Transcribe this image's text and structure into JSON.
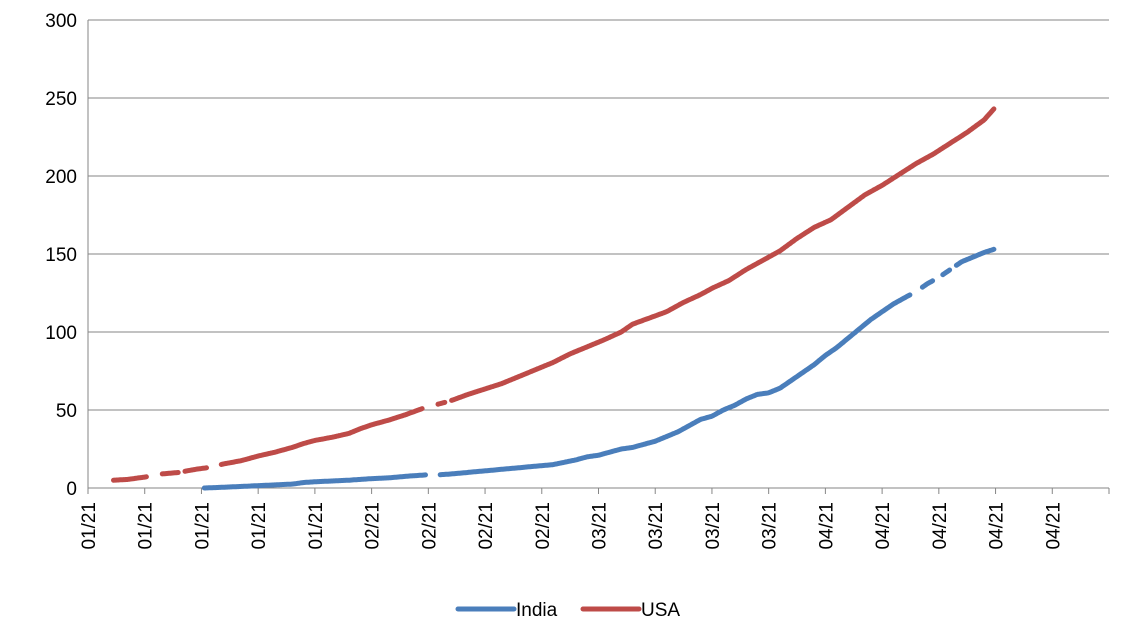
{
  "chart_data": {
    "type": "line",
    "title": "",
    "xlabel": "",
    "ylabel": "",
    "ylim": [
      0,
      300
    ],
    "yticks": [
      "0",
      "50",
      "100",
      "150",
      "200",
      "250",
      "300"
    ],
    "x_tick_labels": [
      "01/21",
      "01/21",
      "01/21",
      "01/21",
      "01/21",
      "02/21",
      "02/21",
      "02/21",
      "02/21",
      "03/21",
      "03/21",
      "03/21",
      "03/21",
      "04/21",
      "04/21",
      "04/21",
      "04/21",
      "04/21"
    ],
    "grid": "horizontal",
    "legend_position": "bottom",
    "series": [
      {
        "name": "India",
        "color": "#4a7ebb",
        "points": [
          [
            2.05,
            0
          ],
          [
            2.4,
            0.5
          ],
          [
            2.7,
            1
          ],
          [
            3.0,
            1.5
          ],
          [
            3.3,
            2
          ],
          [
            3.6,
            2.5
          ],
          [
            3.8,
            3.5
          ],
          [
            4.0,
            4
          ],
          [
            4.3,
            4.5
          ],
          [
            4.6,
            5
          ],
          [
            4.8,
            5.5
          ],
          [
            5.0,
            6
          ],
          [
            5.3,
            6.5
          ],
          [
            5.6,
            7.5
          ],
          [
            5.8,
            8
          ],
          [
            6.0,
            8.5
          ],
          [
            6.2,
            8.5
          ],
          [
            6.4,
            9
          ],
          [
            6.7,
            10
          ],
          [
            7.0,
            11
          ],
          [
            7.3,
            12
          ],
          [
            7.6,
            13
          ],
          [
            7.9,
            14
          ],
          [
            8.2,
            15
          ],
          [
            8.4,
            16.5
          ],
          [
            8.6,
            18
          ],
          [
            8.8,
            20
          ],
          [
            9.0,
            21
          ],
          [
            9.2,
            23
          ],
          [
            9.4,
            25
          ],
          [
            9.6,
            26
          ],
          [
            9.8,
            28
          ],
          [
            10.0,
            30
          ],
          [
            10.2,
            33
          ],
          [
            10.4,
            36
          ],
          [
            10.6,
            40
          ],
          [
            10.8,
            44
          ],
          [
            11.0,
            46
          ],
          [
            11.2,
            50
          ],
          [
            11.4,
            53
          ],
          [
            11.6,
            57
          ],
          [
            11.8,
            60
          ],
          [
            12.0,
            61
          ],
          [
            12.2,
            64
          ],
          [
            12.4,
            69
          ],
          [
            12.6,
            74
          ],
          [
            12.8,
            79
          ],
          [
            13.0,
            85
          ],
          [
            13.2,
            90
          ],
          [
            13.4,
            96
          ],
          [
            13.6,
            102
          ],
          [
            13.8,
            108
          ],
          [
            14.0,
            113
          ],
          [
            14.2,
            118
          ],
          [
            14.4,
            122
          ],
          [
            14.6,
            126
          ],
          [
            14.8,
            131
          ],
          [
            15.0,
            135
          ],
          [
            15.2,
            140
          ],
          [
            15.4,
            145
          ],
          [
            15.6,
            148
          ],
          [
            15.8,
            151
          ],
          [
            15.97,
            153
          ]
        ],
        "gaps": [
          [
            5.95,
            6.2
          ],
          [
            14.5,
            14.7
          ],
          [
            14.9,
            15.05
          ],
          [
            15.2,
            15.3
          ]
        ]
      },
      {
        "name": "USA",
        "color": "#be4b48",
        "points": [
          [
            0.45,
            5
          ],
          [
            0.7,
            5.5
          ],
          [
            1.0,
            7
          ],
          [
            1.3,
            9
          ],
          [
            1.6,
            10
          ],
          [
            1.9,
            12
          ],
          [
            2.1,
            13
          ],
          [
            2.4,
            15.5
          ],
          [
            2.7,
            17.5
          ],
          [
            3.0,
            20.5
          ],
          [
            3.3,
            23
          ],
          [
            3.6,
            26
          ],
          [
            3.8,
            28.5
          ],
          [
            4.0,
            30.5
          ],
          [
            4.3,
            32.5
          ],
          [
            4.6,
            35
          ],
          [
            4.8,
            38
          ],
          [
            5.0,
            40.5
          ],
          [
            5.3,
            43.5
          ],
          [
            5.6,
            47
          ],
          [
            5.9,
            51
          ],
          [
            6.1,
            53
          ],
          [
            6.4,
            56
          ],
          [
            6.7,
            60
          ],
          [
            7.0,
            63.5
          ],
          [
            7.3,
            67
          ],
          [
            7.6,
            71.5
          ],
          [
            7.9,
            76
          ],
          [
            8.2,
            80.5
          ],
          [
            8.5,
            86
          ],
          [
            8.8,
            90.5
          ],
          [
            9.1,
            95
          ],
          [
            9.4,
            100
          ],
          [
            9.6,
            105
          ],
          [
            9.9,
            109
          ],
          [
            10.2,
            113
          ],
          [
            10.5,
            119
          ],
          [
            10.8,
            124
          ],
          [
            11.0,
            128
          ],
          [
            11.3,
            133
          ],
          [
            11.6,
            140
          ],
          [
            11.9,
            146
          ],
          [
            12.2,
            152
          ],
          [
            12.5,
            160
          ],
          [
            12.8,
            167
          ],
          [
            13.1,
            172
          ],
          [
            13.4,
            180
          ],
          [
            13.7,
            188
          ],
          [
            14.0,
            194
          ],
          [
            14.3,
            201
          ],
          [
            14.6,
            208
          ],
          [
            14.9,
            214
          ],
          [
            15.2,
            221
          ],
          [
            15.5,
            228
          ],
          [
            15.8,
            236
          ],
          [
            15.97,
            243
          ]
        ],
        "gaps": [
          [
            1.05,
            1.3
          ],
          [
            1.6,
            1.7
          ],
          [
            2.1,
            2.35
          ],
          [
            5.9,
            6.15
          ],
          [
            6.3,
            6.4
          ]
        ]
      }
    ]
  }
}
